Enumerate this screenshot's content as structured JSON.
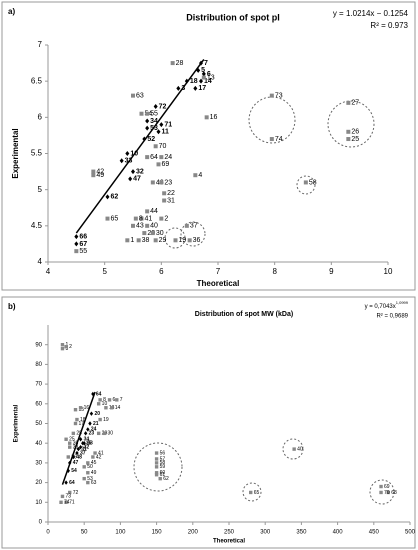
{
  "chart_data": [
    {
      "type": "scatter",
      "panel": "a)",
      "title": "Distribution of spot pI",
      "xlabel": "Theoretical",
      "ylabel": "Experimental",
      "equation": "y = 1.0214x − 0.1254",
      "r2": "R² = 0.973",
      "xlim": [
        4,
        10
      ],
      "xticks": [
        4,
        5,
        6,
        7,
        8,
        9,
        10
      ],
      "ylim": [
        4,
        7
      ],
      "yticks": [
        4,
        4.5,
        5,
        5.5,
        6,
        6.5,
        7
      ],
      "grid": false,
      "trendline": {
        "color": "#000000",
        "x": [
          4.5,
          6.75
        ],
        "values": [
          4.4,
          6.8
        ]
      },
      "series": [
        {
          "color": "#000000",
          "marker": "diamond",
          "labels": [
            "7",
            "5",
            "6",
            "14",
            "18",
            "3",
            "17",
            "72",
            "34",
            "71",
            "53",
            "11",
            "52",
            "10",
            "33",
            "32",
            "47",
            "62",
            "66",
            "67"
          ],
          "x": [
            6.7,
            6.65,
            6.75,
            6.7,
            6.45,
            6.3,
            6.6,
            5.9,
            5.75,
            6.0,
            5.75,
            5.95,
            5.7,
            5.4,
            5.3,
            5.5,
            5.45,
            5.05,
            4.5,
            4.5
          ],
          "values": [
            6.75,
            6.65,
            6.6,
            6.5,
            6.5,
            6.4,
            6.4,
            6.15,
            5.95,
            5.9,
            5.85,
            5.8,
            5.7,
            5.5,
            5.4,
            5.25,
            5.15,
            4.9,
            4.35,
            4.25
          ]
        },
        {
          "color": "#888888",
          "marker": "square",
          "labels": [
            "28",
            "13",
            "63",
            "54",
            "55",
            "16",
            "70",
            "64",
            "24",
            "69",
            "42",
            "49",
            "46",
            "23",
            "4",
            "22",
            "31",
            "44",
            "2",
            "41",
            "8",
            "65",
            "40",
            "43",
            "20",
            "30",
            "29",
            "38",
            "1",
            "19",
            "36",
            "37",
            "55",
            "73",
            "74",
            "27",
            "26",
            "25",
            "58"
          ],
          "x": [
            6.2,
            6.75,
            5.5,
            5.65,
            5.75,
            6.8,
            5.9,
            5.75,
            6.0,
            5.95,
            4.8,
            4.8,
            5.85,
            6.0,
            6.6,
            6.05,
            6.05,
            5.75,
            6.0,
            5.65,
            5.55,
            5.05,
            5.75,
            5.5,
            5.7,
            5.85,
            5.9,
            5.6,
            5.4,
            6.25,
            6.5,
            6.45,
            4.5,
            7.95,
            7.95,
            9.3,
            9.3,
            9.3,
            8.55
          ],
          "values": [
            6.75,
            6.55,
            6.3,
            6.05,
            6.05,
            6.0,
            5.6,
            5.45,
            5.45,
            5.35,
            5.25,
            5.2,
            5.1,
            5.1,
            5.2,
            4.95,
            4.85,
            4.7,
            4.6,
            4.6,
            4.6,
            4.6,
            4.5,
            4.5,
            4.4,
            4.4,
            4.3,
            4.3,
            4.3,
            4.3,
            4.3,
            4.5,
            4.15,
            6.3,
            5.7,
            6.2,
            5.8,
            5.7,
            5.1
          ]
        }
      ]
    },
    {
      "type": "scatter",
      "panel": "b)",
      "title": "Distribution of spot MW (kDa)",
      "xlabel": "Theoretical",
      "ylabel": "Experimental",
      "equation": "y = 0,7043x",
      "equation_exponent": "1,0999",
      "r2": "R² = 0,9689",
      "xlim": [
        0,
        500
      ],
      "xticks": [
        0,
        50,
        100,
        150,
        200,
        250,
        300,
        350,
        400,
        450,
        500
      ],
      "ylim": [
        0,
        100
      ],
      "yticks": [
        0,
        10,
        20,
        30,
        40,
        50,
        60,
        70,
        80,
        90
      ],
      "grid": false,
      "trendline": {
        "color": "#000000",
        "x": [
          20,
          65
        ],
        "values": [
          19,
          66
        ]
      },
      "series": [
        {
          "color": "#000000",
          "marker": "diamond",
          "labels": [
            "64",
            "20",
            "21",
            "24",
            "23",
            "33",
            "35",
            "32",
            "34",
            "31",
            "37",
            "48",
            "47",
            "54",
            "64"
          ],
          "x": [
            62,
            60,
            58,
            55,
            52,
            50,
            48,
            45,
            45,
            42,
            40,
            35,
            30,
            28,
            25
          ],
          "values": [
            65,
            55,
            50,
            47,
            45,
            40,
            40,
            38,
            42,
            37,
            35,
            33,
            30,
            26,
            20
          ]
        },
        {
          "color": "#888888",
          "marker": "square",
          "labels": [
            "1",
            "3",
            "2",
            "6",
            "7",
            "8",
            "13",
            "14",
            "10",
            "15",
            "16",
            "18",
            "17",
            "19",
            "29",
            "30",
            "25",
            "28",
            "36",
            "38",
            "39",
            "41",
            "42",
            "45",
            "49",
            "50",
            "53",
            "63",
            "56",
            "57",
            "58",
            "59",
            "60",
            "61",
            "62",
            "40",
            "65",
            "68",
            "69",
            "70",
            "71",
            "72",
            "73",
            "74"
          ],
          "x": [
            20,
            20,
            25,
            85,
            95,
            72,
            80,
            88,
            70,
            38,
            45,
            40,
            38,
            72,
            70,
            78,
            25,
            35,
            30,
            30,
            28,
            65,
            62,
            55,
            55,
            50,
            50,
            55,
            150,
            150,
            150,
            150,
            150,
            150,
            155,
            340,
            280,
            470,
            460,
            460,
            25,
            30,
            20,
            18
          ],
          "values": [
            90,
            88,
            89,
            62,
            62,
            62,
            58,
            58,
            60,
            57,
            58,
            52,
            50,
            52,
            45,
            45,
            42,
            45,
            40,
            38,
            33,
            35,
            33,
            30,
            25,
            28,
            22,
            20,
            35,
            32,
            30,
            28,
            25,
            24,
            22,
            37,
            15,
            15,
            18,
            15,
            10,
            15,
            13,
            10
          ]
        }
      ]
    }
  ]
}
